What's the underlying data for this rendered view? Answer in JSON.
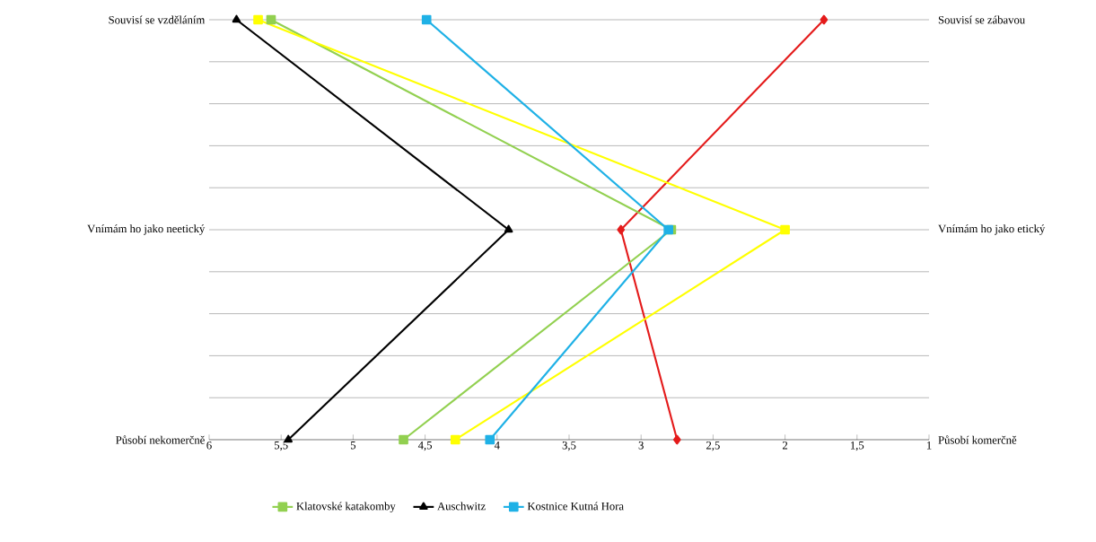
{
  "chart_data": {
    "type": "line",
    "orientation": "horizontal",
    "categories": [
      "Souvisí se vzděláním",
      "Vnímám ho jako neetický",
      "Působí nekomerčně"
    ],
    "y2_categories": [
      "Souvisí se zábavou",
      "Vnímám ho jako etický",
      "Působí komerčně"
    ],
    "xlim": [
      6,
      1
    ],
    "xticks": [
      6,
      {
        "value": 5.5,
        "label": "5,5"
      },
      5,
      {
        "value": 4.5,
        "label": "4,5"
      },
      4,
      {
        "value": 3.5,
        "label": "3,5"
      },
      3,
      {
        "value": 2.5,
        "label": "2,5"
      },
      2,
      {
        "value": 1.5,
        "label": "1,5"
      },
      1
    ],
    "grid": "y",
    "legend": "bottom",
    "line_style": "solid",
    "series": [
      {
        "color": "#e41b1b",
        "marker": "diamond",
        "values": [
          1.73,
          3.14,
          2.75
        ]
      },
      {
        "name": "Klatovské katakomby",
        "color": "#92d050",
        "marker": "square",
        "values": [
          5.57,
          2.79,
          4.65
        ]
      },
      {
        "name": "Auschwitz",
        "color": "#000000",
        "marker": "triangle",
        "values": [
          5.81,
          3.92,
          5.45
        ]
      },
      {
        "color": "#ffff00",
        "marker": "square",
        "values": [
          5.66,
          2.0,
          4.29
        ]
      },
      {
        "name": "Kostnice Kutná Hora",
        "color": "#1fb1e6",
        "marker": "square",
        "values": [
          4.49,
          2.81,
          4.05
        ]
      }
    ]
  }
}
